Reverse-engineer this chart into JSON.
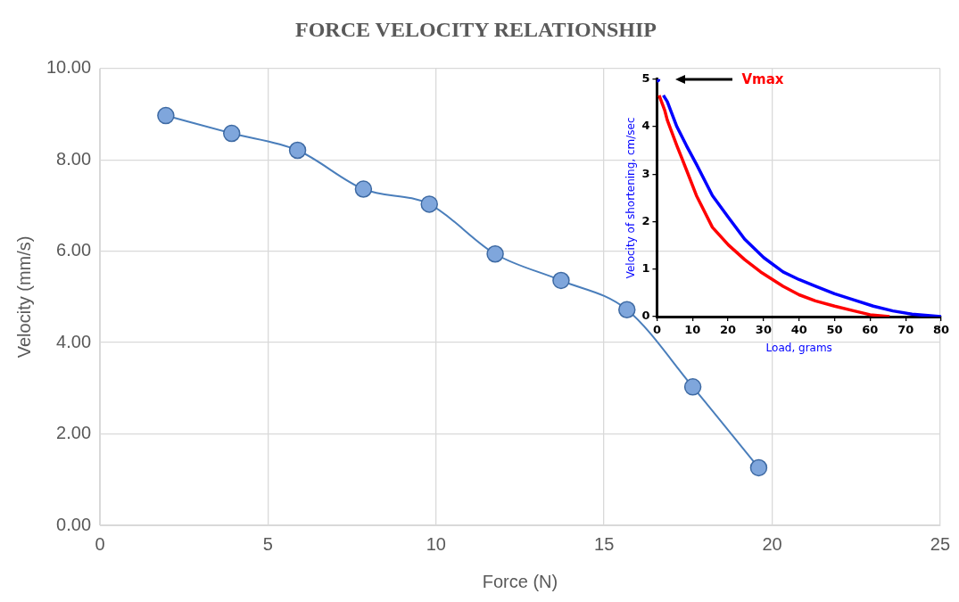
{
  "chart_data": [
    {
      "type": "line",
      "title": "FORCE VELOCITY RELATIONSHIP",
      "xlabel": "Force (N)",
      "ylabel": "Velocity (mm/s)",
      "x": [
        1.96,
        3.92,
        5.88,
        7.84,
        9.8,
        11.76,
        13.72,
        15.68,
        17.64,
        19.6
      ],
      "series": [
        {
          "color": "#4a7ebb",
          "values": [
            8.97,
            8.58,
            8.21,
            7.36,
            7.03,
            5.94,
            5.36,
            4.72,
            3.03,
            1.26
          ]
        }
      ],
      "xlim": [
        0,
        25
      ],
      "xticks": [
        0,
        5,
        10,
        15,
        20,
        25
      ],
      "ylim": [
        0,
        10
      ],
      "yticks": [
        {
          "value": 0,
          "label": "0.00"
        },
        {
          "value": 2,
          "label": "2.00"
        },
        {
          "value": 4,
          "label": "4.00"
        },
        {
          "value": 6,
          "label": "6.00"
        },
        {
          "value": 8,
          "label": "8.00"
        },
        {
          "value": 10,
          "label": "10.00"
        }
      ],
      "grid": true,
      "marker": "circle",
      "line_style": "solid"
    },
    {
      "type": "line",
      "xlabel": "Load, grams",
      "ylabel": "Velocity of shortening, cm/sec",
      "series": [
        {
          "color": "#0000ff",
          "x": [
            0,
            1,
            1.8,
            2.9,
            5.6,
            8.3,
            11.1,
            15.6,
            20.1,
            24.7,
            30.1,
            35.5,
            40,
            44.6,
            50,
            55.5,
            60.9,
            66.4,
            71.8,
            80
          ],
          "values": [
            5,
            null,
            4.66,
            4.53,
            4.0,
            3.6,
            3.21,
            2.55,
            2.09,
            1.63,
            1.24,
            0.94,
            0.78,
            0.64,
            0.48,
            0.35,
            0.22,
            0.12,
            0.05,
            0
          ]
        },
        {
          "color": "#ff0000",
          "x": [
            0.6,
            2.2,
            2.9,
            5.6,
            8.3,
            11.1,
            15.6,
            20.1,
            24.7,
            29.2,
            35.5,
            40,
            44.6,
            50,
            55.5,
            60,
            65.5
          ],
          "values": [
            4.66,
            4.34,
            4.14,
            3.6,
            3.09,
            2.55,
            1.88,
            1.51,
            1.2,
            0.94,
            0.64,
            0.46,
            0.33,
            0.22,
            0.12,
            0.04,
            0
          ]
        }
      ],
      "xlim": [
        0,
        80
      ],
      "xticks": [
        0,
        10,
        20,
        30,
        40,
        50,
        60,
        70,
        80
      ],
      "ylim": [
        0,
        5
      ],
      "yticks": [
        0,
        1,
        2,
        3,
        4,
        5
      ],
      "marker": "none",
      "line_style": "solid",
      "annotations": [
        "Vmax"
      ]
    }
  ]
}
